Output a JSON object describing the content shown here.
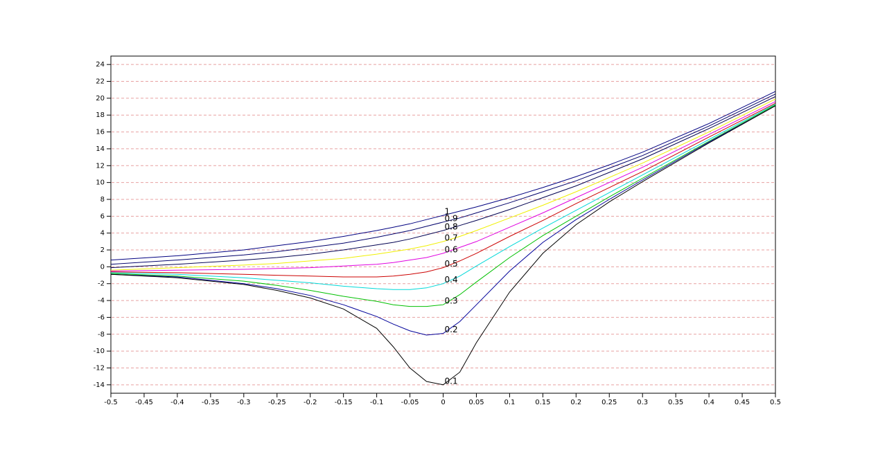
{
  "chart_data": {
    "type": "line",
    "x": [
      -0.5,
      -0.4,
      -0.3,
      -0.25,
      -0.2,
      -0.15,
      -0.1,
      -0.075,
      -0.05,
      -0.025,
      0,
      0.025,
      0.05,
      0.1,
      0.15,
      0.2,
      0.25,
      0.3,
      0.4,
      0.5
    ],
    "series": [
      {
        "name": "1",
        "color": "#000080",
        "values": [
          0.8,
          1.3,
          2.0,
          2.5,
          3.0,
          3.6,
          4.3,
          4.7,
          5.1,
          5.6,
          6.1,
          6.6,
          7.1,
          8.2,
          9.4,
          10.7,
          12.1,
          13.6,
          17.0,
          20.8
        ]
      },
      {
        "name": "0.9",
        "color": "#00006a",
        "values": [
          0.3,
          0.8,
          1.4,
          1.8,
          2.3,
          2.8,
          3.5,
          3.9,
          4.3,
          4.8,
          5.3,
          5.8,
          6.4,
          7.6,
          8.9,
          10.2,
          11.7,
          13.2,
          16.7,
          20.5
        ]
      },
      {
        "name": "0.8",
        "color": "#000050",
        "values": [
          -0.1,
          0.3,
          0.8,
          1.1,
          1.5,
          2.0,
          2.6,
          2.9,
          3.3,
          3.8,
          4.3,
          4.9,
          5.5,
          6.8,
          8.2,
          9.6,
          11.2,
          12.8,
          16.4,
          20.2
        ]
      },
      {
        "name": "0.7",
        "color": "#f0f000",
        "values": [
          -0.4,
          -0.1,
          0.2,
          0.4,
          0.7,
          1.0,
          1.5,
          1.8,
          2.1,
          2.5,
          3.0,
          3.6,
          4.3,
          5.8,
          7.3,
          8.9,
          10.6,
          12.3,
          16.0,
          19.9
        ]
      },
      {
        "name": "0.6",
        "color": "#e000e0",
        "values": [
          -0.5,
          -0.4,
          -0.3,
          -0.2,
          -0.1,
          0.1,
          0.3,
          0.5,
          0.8,
          1.1,
          1.6,
          2.3,
          3.0,
          4.7,
          6.4,
          8.2,
          10.0,
          11.8,
          15.7,
          19.6
        ]
      },
      {
        "name": "0.5",
        "color": "#cc0000",
        "values": [
          -0.6,
          -0.7,
          -0.9,
          -1.0,
          -1.1,
          -1.2,
          -1.2,
          -1.1,
          -0.9,
          -0.6,
          -0.1,
          0.7,
          1.6,
          3.6,
          5.5,
          7.5,
          9.4,
          11.3,
          15.4,
          19.4
        ]
      },
      {
        "name": "0.4",
        "color": "#00d8d8",
        "values": [
          -0.7,
          -0.9,
          -1.3,
          -1.6,
          -1.9,
          -2.3,
          -2.6,
          -2.7,
          -2.7,
          -2.5,
          -2.0,
          -1.1,
          0.1,
          2.4,
          4.6,
          6.7,
          8.8,
          10.9,
          15.1,
          19.3
        ]
      },
      {
        "name": "0.3",
        "color": "#00c000",
        "values": [
          -0.8,
          -1.1,
          -1.7,
          -2.2,
          -2.8,
          -3.5,
          -4.1,
          -4.5,
          -4.7,
          -4.7,
          -4.5,
          -3.3,
          -1.8,
          1.1,
          3.7,
          6.0,
          8.3,
          10.5,
          14.9,
          19.2
        ]
      },
      {
        "name": "0.2",
        "color": "#000099",
        "values": [
          -0.9,
          -1.2,
          -2.0,
          -2.6,
          -3.4,
          -4.5,
          -5.9,
          -6.8,
          -7.6,
          -8.1,
          -7.9,
          -6.5,
          -4.5,
          -0.5,
          2.9,
          5.6,
          8.0,
          10.3,
          14.8,
          19.1
        ]
      },
      {
        "name": "0.1",
        "color": "#000000",
        "values": [
          -0.9,
          -1.3,
          -2.1,
          -2.8,
          -3.7,
          -5.0,
          -7.3,
          -9.5,
          -12.0,
          -13.6,
          -14.0,
          -12.5,
          -9.0,
          -3.0,
          1.6,
          5.0,
          7.7,
          10.1,
          14.7,
          19.1
        ]
      }
    ],
    "xlim": [
      -0.5,
      0.5
    ],
    "xticks": [
      -0.5,
      -0.45,
      -0.4,
      -0.35,
      -0.3,
      -0.25,
      -0.2,
      -0.15,
      -0.1,
      -0.05,
      0,
      0.05,
      0.1,
      0.15,
      0.2,
      0.25,
      0.3,
      0.35,
      0.4,
      0.45,
      0.5
    ],
    "ylim": [
      -15,
      25
    ],
    "yticks": [
      -14,
      -12,
      -10,
      -8,
      -6,
      -4,
      -2,
      0,
      2,
      4,
      6,
      8,
      10,
      12,
      14,
      16,
      18,
      20,
      22,
      24
    ],
    "grid": true
  }
}
